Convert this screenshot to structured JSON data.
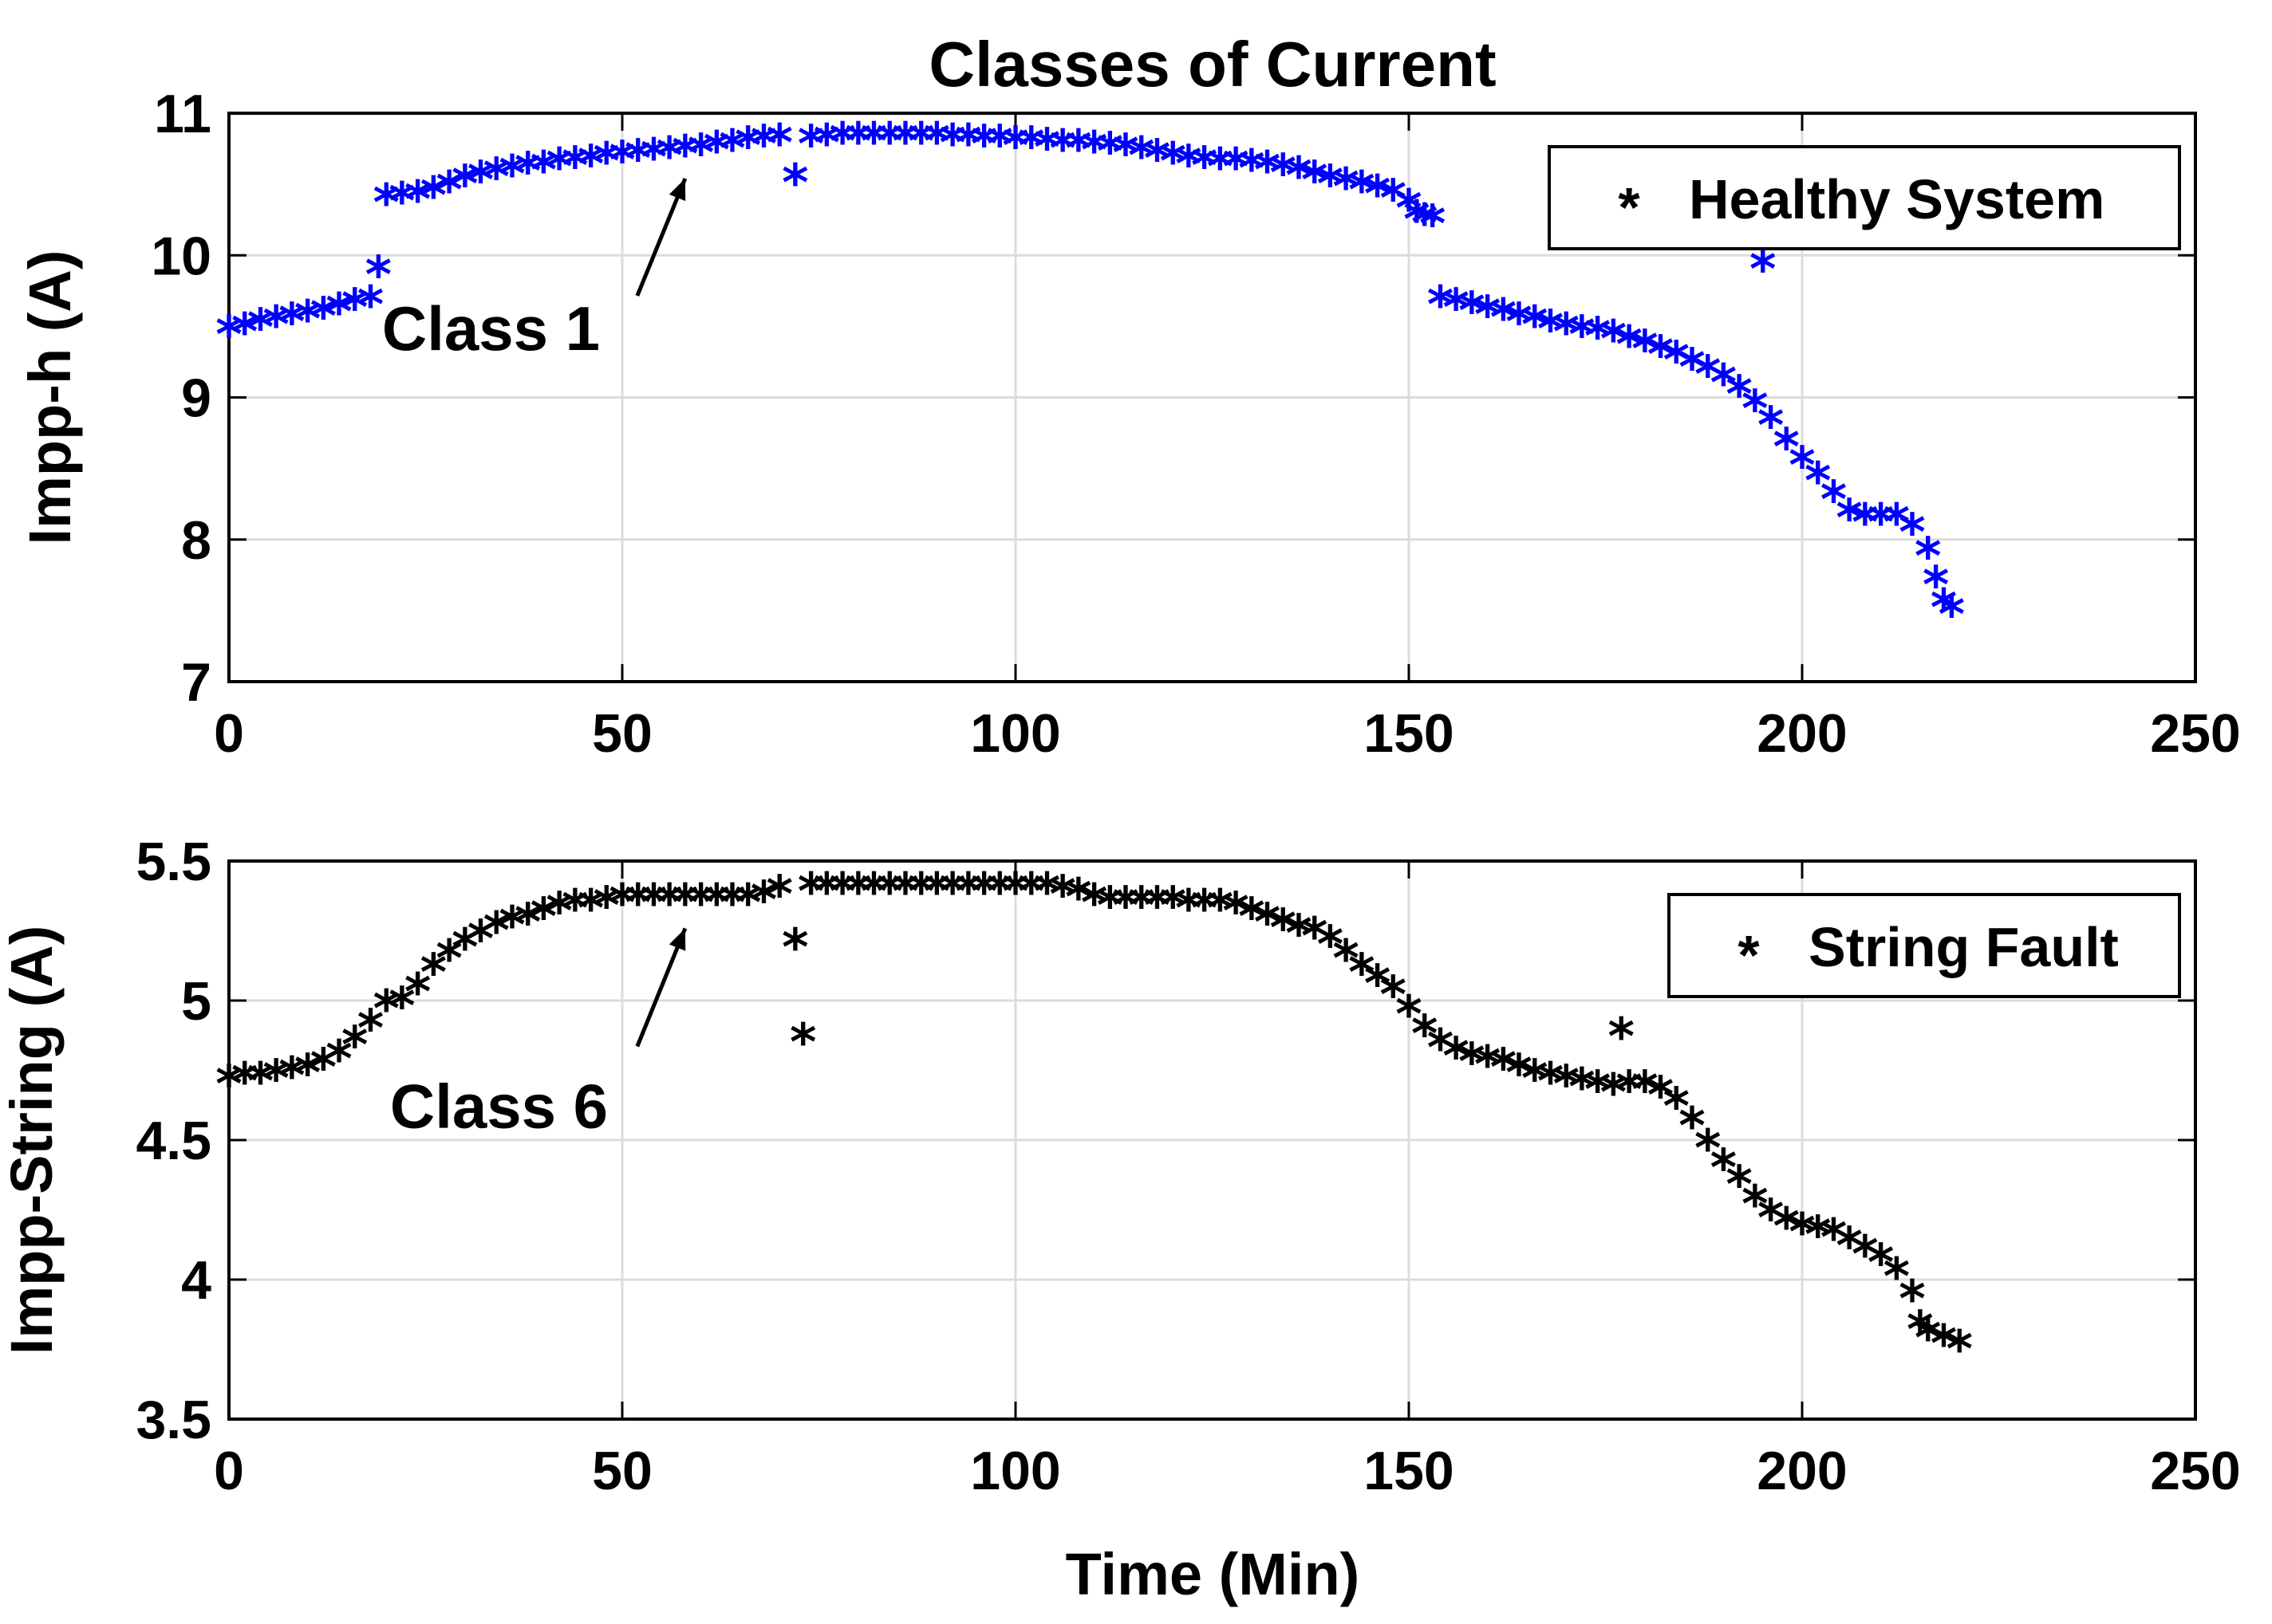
{
  "title": "Classes of Current",
  "xlabel": "Time (Min)",
  "colors": {
    "healthy": "#0000ff",
    "fault": "#000000",
    "grid": "#dcdcdc"
  },
  "chart_data": [
    {
      "type": "scatter",
      "ylabel": "Impp-h (A)",
      "xlim": [
        0,
        250
      ],
      "ylim": [
        7,
        11
      ],
      "xticks": [
        0,
        50,
        100,
        150,
        200,
        250
      ],
      "yticks": [
        7,
        8,
        9,
        10,
        11
      ],
      "grid": true,
      "legend_position": "top-right",
      "series": [
        {
          "name": "Healthy System",
          "marker": "asterisk",
          "points": [
            [
              0,
              9.44
            ],
            [
              2,
              9.46
            ],
            [
              4,
              9.49
            ],
            [
              6,
              9.51
            ],
            [
              8,
              9.53
            ],
            [
              10,
              9.55
            ],
            [
              12,
              9.57
            ],
            [
              14,
              9.6
            ],
            [
              16,
              9.63
            ],
            [
              18,
              9.65
            ],
            [
              19,
              9.86
            ],
            [
              20,
              10.37
            ],
            [
              22,
              10.38
            ],
            [
              24,
              10.39
            ],
            [
              26,
              10.42
            ],
            [
              28,
              10.46
            ],
            [
              30,
              10.5
            ],
            [
              32,
              10.53
            ],
            [
              34,
              10.55
            ],
            [
              36,
              10.57
            ],
            [
              38,
              10.59
            ],
            [
              40,
              10.6
            ],
            [
              42,
              10.62
            ],
            [
              44,
              10.63
            ],
            [
              46,
              10.64
            ],
            [
              48,
              10.66
            ],
            [
              50,
              10.67
            ],
            [
              52,
              10.68
            ],
            [
              54,
              10.69
            ],
            [
              56,
              10.7
            ],
            [
              58,
              10.71
            ],
            [
              60,
              10.72
            ],
            [
              62,
              10.74
            ],
            [
              64,
              10.75
            ],
            [
              66,
              10.77
            ],
            [
              68,
              10.78
            ],
            [
              70,
              10.79
            ],
            [
              72,
              10.51
            ],
            [
              74,
              10.78
            ],
            [
              76,
              10.79
            ],
            [
              78,
              10.8
            ],
            [
              80,
              10.8
            ],
            [
              82,
              10.8
            ],
            [
              84,
              10.8
            ],
            [
              86,
              10.8
            ],
            [
              88,
              10.8
            ],
            [
              90,
              10.8
            ],
            [
              92,
              10.79
            ],
            [
              94,
              10.79
            ],
            [
              96,
              10.78
            ],
            [
              98,
              10.78
            ],
            [
              100,
              10.77
            ],
            [
              102,
              10.77
            ],
            [
              104,
              10.76
            ],
            [
              106,
              10.75
            ],
            [
              108,
              10.75
            ],
            [
              110,
              10.74
            ],
            [
              112,
              10.73
            ],
            [
              114,
              10.72
            ],
            [
              116,
              10.7
            ],
            [
              118,
              10.68
            ],
            [
              120,
              10.66
            ],
            [
              122,
              10.64
            ],
            [
              124,
              10.63
            ],
            [
              126,
              10.62
            ],
            [
              128,
              10.62
            ],
            [
              130,
              10.61
            ],
            [
              132,
              10.6
            ],
            [
              134,
              10.58
            ],
            [
              136,
              10.56
            ],
            [
              138,
              10.53
            ],
            [
              140,
              10.5
            ],
            [
              142,
              10.48
            ],
            [
              144,
              10.46
            ],
            [
              146,
              10.43
            ],
            [
              148,
              10.4
            ],
            [
              150,
              10.33
            ],
            [
              151,
              10.25
            ],
            [
              152,
              10.23
            ],
            [
              153,
              10.22
            ],
            [
              154,
              9.65
            ],
            [
              156,
              9.63
            ],
            [
              158,
              9.61
            ],
            [
              160,
              9.58
            ],
            [
              162,
              9.56
            ],
            [
              164,
              9.53
            ],
            [
              166,
              9.51
            ],
            [
              168,
              9.48
            ],
            [
              170,
              9.46
            ],
            [
              172,
              9.44
            ],
            [
              174,
              9.43
            ],
            [
              176,
              9.41
            ],
            [
              178,
              9.37
            ],
            [
              180,
              9.34
            ],
            [
              182,
              9.3
            ],
            [
              184,
              9.26
            ],
            [
              186,
              9.21
            ],
            [
              188,
              9.16
            ],
            [
              190,
              9.1
            ],
            [
              192,
              9.02
            ],
            [
              194,
              8.92
            ],
            [
              195,
              9.9
            ],
            [
              196,
              8.8
            ],
            [
              198,
              8.65
            ],
            [
              200,
              8.52
            ],
            [
              202,
              8.41
            ],
            [
              204,
              8.28
            ],
            [
              206,
              8.15
            ],
            [
              208,
              8.12
            ],
            [
              210,
              8.12
            ],
            [
              212,
              8.12
            ],
            [
              214,
              8.05
            ],
            [
              216,
              7.88
            ],
            [
              217,
              7.68
            ],
            [
              218,
              7.52
            ],
            [
              219,
              7.47
            ]
          ]
        }
      ],
      "annotation": {
        "text": "Class 1",
        "x": 58,
        "y": 10.72
      }
    },
    {
      "type": "scatter",
      "ylabel": "Impp-String (A)",
      "xlabel": "Time (Min)",
      "xlim": [
        0,
        250
      ],
      "ylim": [
        3.5,
        5.5
      ],
      "xticks": [
        0,
        50,
        100,
        150,
        200,
        250
      ],
      "yticks": [
        3.5,
        4,
        4.5,
        5,
        5.5
      ],
      "grid": true,
      "legend_position": "top-right",
      "series": [
        {
          "name": "String Fault",
          "marker": "asterisk",
          "points": [
            [
              0,
              4.7
            ],
            [
              2,
              4.71
            ],
            [
              4,
              4.71
            ],
            [
              6,
              4.72
            ],
            [
              8,
              4.73
            ],
            [
              10,
              4.74
            ],
            [
              12,
              4.76
            ],
            [
              14,
              4.79
            ],
            [
              16,
              4.84
            ],
            [
              18,
              4.9
            ],
            [
              20,
              4.97
            ],
            [
              22,
              4.98
            ],
            [
              24,
              5.03
            ],
            [
              26,
              5.1
            ],
            [
              28,
              5.15
            ],
            [
              30,
              5.19
            ],
            [
              32,
              5.22
            ],
            [
              34,
              5.25
            ],
            [
              36,
              5.27
            ],
            [
              38,
              5.28
            ],
            [
              40,
              5.3
            ],
            [
              42,
              5.32
            ],
            [
              44,
              5.33
            ],
            [
              46,
              5.33
            ],
            [
              48,
              5.34
            ],
            [
              50,
              5.35
            ],
            [
              52,
              5.35
            ],
            [
              54,
              5.35
            ],
            [
              56,
              5.35
            ],
            [
              58,
              5.35
            ],
            [
              60,
              5.35
            ],
            [
              62,
              5.35
            ],
            [
              64,
              5.35
            ],
            [
              66,
              5.35
            ],
            [
              68,
              5.36
            ],
            [
              70,
              5.38
            ],
            [
              72,
              5.19
            ],
            [
              73,
              4.85
            ],
            [
              74,
              5.39
            ],
            [
              76,
              5.39
            ],
            [
              78,
              5.39
            ],
            [
              80,
              5.39
            ],
            [
              82,
              5.39
            ],
            [
              84,
              5.39
            ],
            [
              86,
              5.39
            ],
            [
              88,
              5.39
            ],
            [
              90,
              5.39
            ],
            [
              92,
              5.39
            ],
            [
              94,
              5.39
            ],
            [
              96,
              5.39
            ],
            [
              98,
              5.39
            ],
            [
              100,
              5.39
            ],
            [
              102,
              5.39
            ],
            [
              104,
              5.39
            ],
            [
              106,
              5.38
            ],
            [
              108,
              5.37
            ],
            [
              110,
              5.35
            ],
            [
              112,
              5.34
            ],
            [
              114,
              5.34
            ],
            [
              116,
              5.34
            ],
            [
              118,
              5.34
            ],
            [
              120,
              5.34
            ],
            [
              122,
              5.33
            ],
            [
              124,
              5.33
            ],
            [
              126,
              5.33
            ],
            [
              128,
              5.32
            ],
            [
              130,
              5.3
            ],
            [
              132,
              5.28
            ],
            [
              134,
              5.26
            ],
            [
              136,
              5.24
            ],
            [
              138,
              5.23
            ],
            [
              140,
              5.2
            ],
            [
              142,
              5.15
            ],
            [
              144,
              5.1
            ],
            [
              146,
              5.06
            ],
            [
              148,
              5.02
            ],
            [
              150,
              4.95
            ],
            [
              152,
              4.88
            ],
            [
              154,
              4.83
            ],
            [
              156,
              4.8
            ],
            [
              158,
              4.78
            ],
            [
              160,
              4.77
            ],
            [
              162,
              4.76
            ],
            [
              164,
              4.74
            ],
            [
              166,
              4.72
            ],
            [
              168,
              4.71
            ],
            [
              170,
              4.7
            ],
            [
              172,
              4.69
            ],
            [
              174,
              4.68
            ],
            [
              176,
              4.67
            ],
            [
              177,
              4.87
            ],
            [
              178,
              4.68
            ],
            [
              180,
              4.68
            ],
            [
              182,
              4.66
            ],
            [
              184,
              4.62
            ],
            [
              186,
              4.55
            ],
            [
              188,
              4.47
            ],
            [
              190,
              4.4
            ],
            [
              192,
              4.34
            ],
            [
              194,
              4.27
            ],
            [
              196,
              4.22
            ],
            [
              198,
              4.19
            ],
            [
              200,
              4.17
            ],
            [
              202,
              4.16
            ],
            [
              204,
              4.15
            ],
            [
              206,
              4.12
            ],
            [
              208,
              4.09
            ],
            [
              210,
              4.06
            ],
            [
              212,
              4.01
            ],
            [
              214,
              3.93
            ],
            [
              215,
              3.82
            ],
            [
              216,
              3.79
            ],
            [
              218,
              3.77
            ],
            [
              220,
              3.75
            ]
          ]
        }
      ],
      "annotation": {
        "text": "Class 6",
        "x": 58,
        "y": 5.35
      }
    }
  ]
}
